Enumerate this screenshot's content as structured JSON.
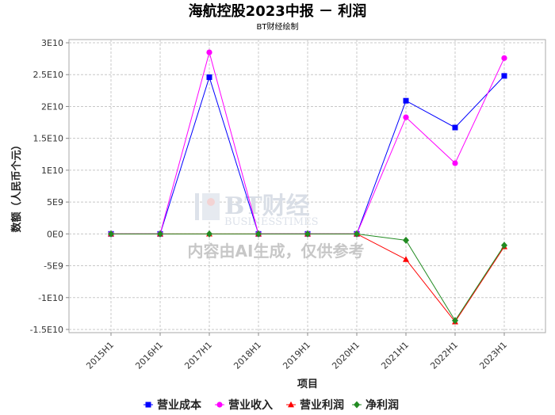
{
  "chart_data": {
    "type": "line",
    "title": "海航控股2023中报 － 利润",
    "subtitle": "BT财经绘制",
    "xlabel": "项目",
    "ylabel": "数额（人民币个元）",
    "categories": [
      "2015H1",
      "2016H1",
      "2017H1",
      "2018H1",
      "2019H1",
      "2020H1",
      "2021H1",
      "2022H1",
      "2023H1"
    ],
    "ylim": [
      -15500000000,
      30500000000
    ],
    "yticks": [
      -15000000000,
      -10000000000,
      -5000000000,
      0,
      5000000000,
      10000000000,
      15000000000,
      20000000000,
      25000000000,
      30000000000
    ],
    "ytick_labels": [
      "-1.5E10",
      "-1E10",
      "-5E9",
      "0E0",
      "5E9",
      "1E10",
      "1.5E10",
      "2E10",
      "2.5E10",
      "3E10"
    ],
    "grid": true,
    "legend_position": "bottom",
    "series": [
      {
        "name": "营业成本",
        "color": "#0000ff",
        "marker": "square",
        "values": [
          0,
          0,
          24600000000,
          0,
          0,
          0,
          20900000000,
          16700000000,
          24800000000
        ]
      },
      {
        "name": "营业收入",
        "color": "#ff00ff",
        "marker": "circle",
        "values": [
          0,
          0,
          28500000000,
          0,
          0,
          0,
          18300000000,
          11100000000,
          27600000000
        ]
      },
      {
        "name": "营业利润",
        "color": "#ff0000",
        "marker": "triangle",
        "values": [
          0,
          0,
          0,
          0,
          0,
          0,
          -4000000000,
          -13800000000,
          -2000000000
        ]
      },
      {
        "name": "净利润",
        "color": "#228b22",
        "marker": "diamond",
        "values": [
          0,
          0,
          0,
          0,
          0,
          0,
          -1000000000,
          -13600000000,
          -1800000000
        ]
      }
    ]
  },
  "watermark": {
    "brand": "BT财经",
    "brand_sub": "BUSINESSTIMES",
    "notice": "内容由AI生成，仅供参考"
  }
}
